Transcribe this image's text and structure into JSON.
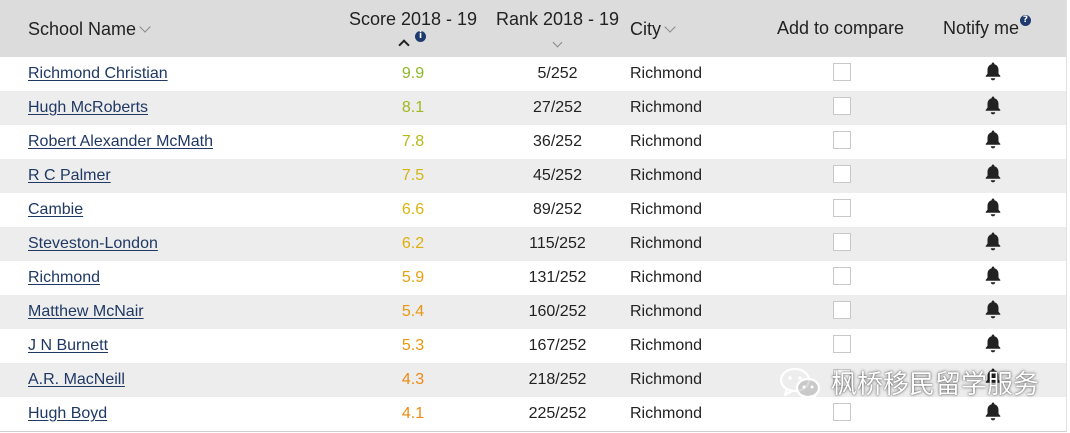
{
  "header": {
    "school_name": "School Name",
    "score": "Score 2018 - 19",
    "rank": "Rank 2018 - 19",
    "city": "City",
    "compare": "Add to compare",
    "notify": "Notify me"
  },
  "colors": {
    "header_bg": "#dcdcdc",
    "link": "#1f3864",
    "row_shade": "#ededed",
    "info_icon": "#1e3a6e"
  },
  "rows": [
    {
      "name": "Richmond Christian",
      "score": "9.9",
      "rank": "5/252",
      "city": "Richmond",
      "score_color": "#8db52a"
    },
    {
      "name": "Hugh McRoberts",
      "score": "8.1",
      "rank": "27/252",
      "city": "Richmond",
      "score_color": "#a2b81e"
    },
    {
      "name": "Robert Alexander McMath",
      "score": "7.8",
      "rank": "36/252",
      "city": "Richmond",
      "score_color": "#b5ba17"
    },
    {
      "name": "R C Palmer",
      "score": "7.5",
      "rank": "45/252",
      "city": "Richmond",
      "score_color": "#d3b613"
    },
    {
      "name": "Cambie",
      "score": "6.6",
      "rank": "89/252",
      "city": "Richmond",
      "score_color": "#d9b40e"
    },
    {
      "name": "Steveston-London",
      "score": "6.2",
      "rank": "115/252",
      "city": "Richmond",
      "score_color": "#e0ae0c"
    },
    {
      "name": "Richmond",
      "score": "5.9",
      "rank": "131/252",
      "city": "Richmond",
      "score_color": "#e7a10c"
    },
    {
      "name": "Matthew McNair",
      "score": "5.4",
      "rank": "160/252",
      "city": "Richmond",
      "score_color": "#ea960f"
    },
    {
      "name": "J N Burnett",
      "score": "5.3",
      "rank": "167/252",
      "city": "Richmond",
      "score_color": "#ea960f"
    },
    {
      "name": "A.R. MacNeill",
      "score": "4.3",
      "rank": "218/252",
      "city": "Richmond",
      "score_color": "#ec8a12"
    },
    {
      "name": "Hugh Boyd",
      "score": "4.1",
      "rank": "225/252",
      "city": "Richmond",
      "score_color": "#ec8a12"
    }
  ],
  "watermark": {
    "text": "枫桥移民留学服务",
    "icon": "wechat-icon"
  }
}
